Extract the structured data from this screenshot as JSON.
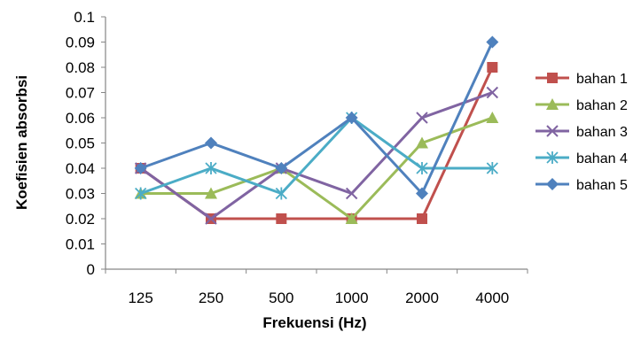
{
  "chart_data": {
    "type": "line",
    "title": "",
    "xlabel": "Frekuensi (Hz)",
    "ylabel": "Koefisien absorbsi",
    "categories": [
      "125",
      "250",
      "500",
      "1000",
      "2000",
      "4000"
    ],
    "ylim": [
      0,
      0.1
    ],
    "yticks": [
      "0",
      "0.01",
      "0.02",
      "0.03",
      "0.04",
      "0.05",
      "0.06",
      "0.07",
      "0.08",
      "0.09",
      "0.1"
    ],
    "grid": false,
    "legend_position": "right",
    "series": [
      {
        "name": "bahan 1",
        "color": "#C0504D",
        "marker": "square",
        "values": [
          0.04,
          0.02,
          0.02,
          0.02,
          0.02,
          0.08
        ]
      },
      {
        "name": "bahan 2",
        "color": "#9BBB59",
        "marker": "triangle",
        "values": [
          0.03,
          0.03,
          0.04,
          0.02,
          0.05,
          0.06
        ]
      },
      {
        "name": "bahan 3",
        "color": "#8064A2",
        "marker": "x",
        "values": [
          0.04,
          0.02,
          0.04,
          0.03,
          0.06,
          0.07
        ]
      },
      {
        "name": "bahan 4",
        "color": "#4BACC6",
        "marker": "star",
        "values": [
          0.03,
          0.04,
          0.03,
          0.06,
          0.04,
          0.04
        ]
      },
      {
        "name": "bahan 5",
        "color": "#4F81BD",
        "marker": "diamond",
        "values": [
          0.04,
          0.05,
          0.04,
          0.06,
          0.03,
          0.09
        ]
      }
    ]
  }
}
